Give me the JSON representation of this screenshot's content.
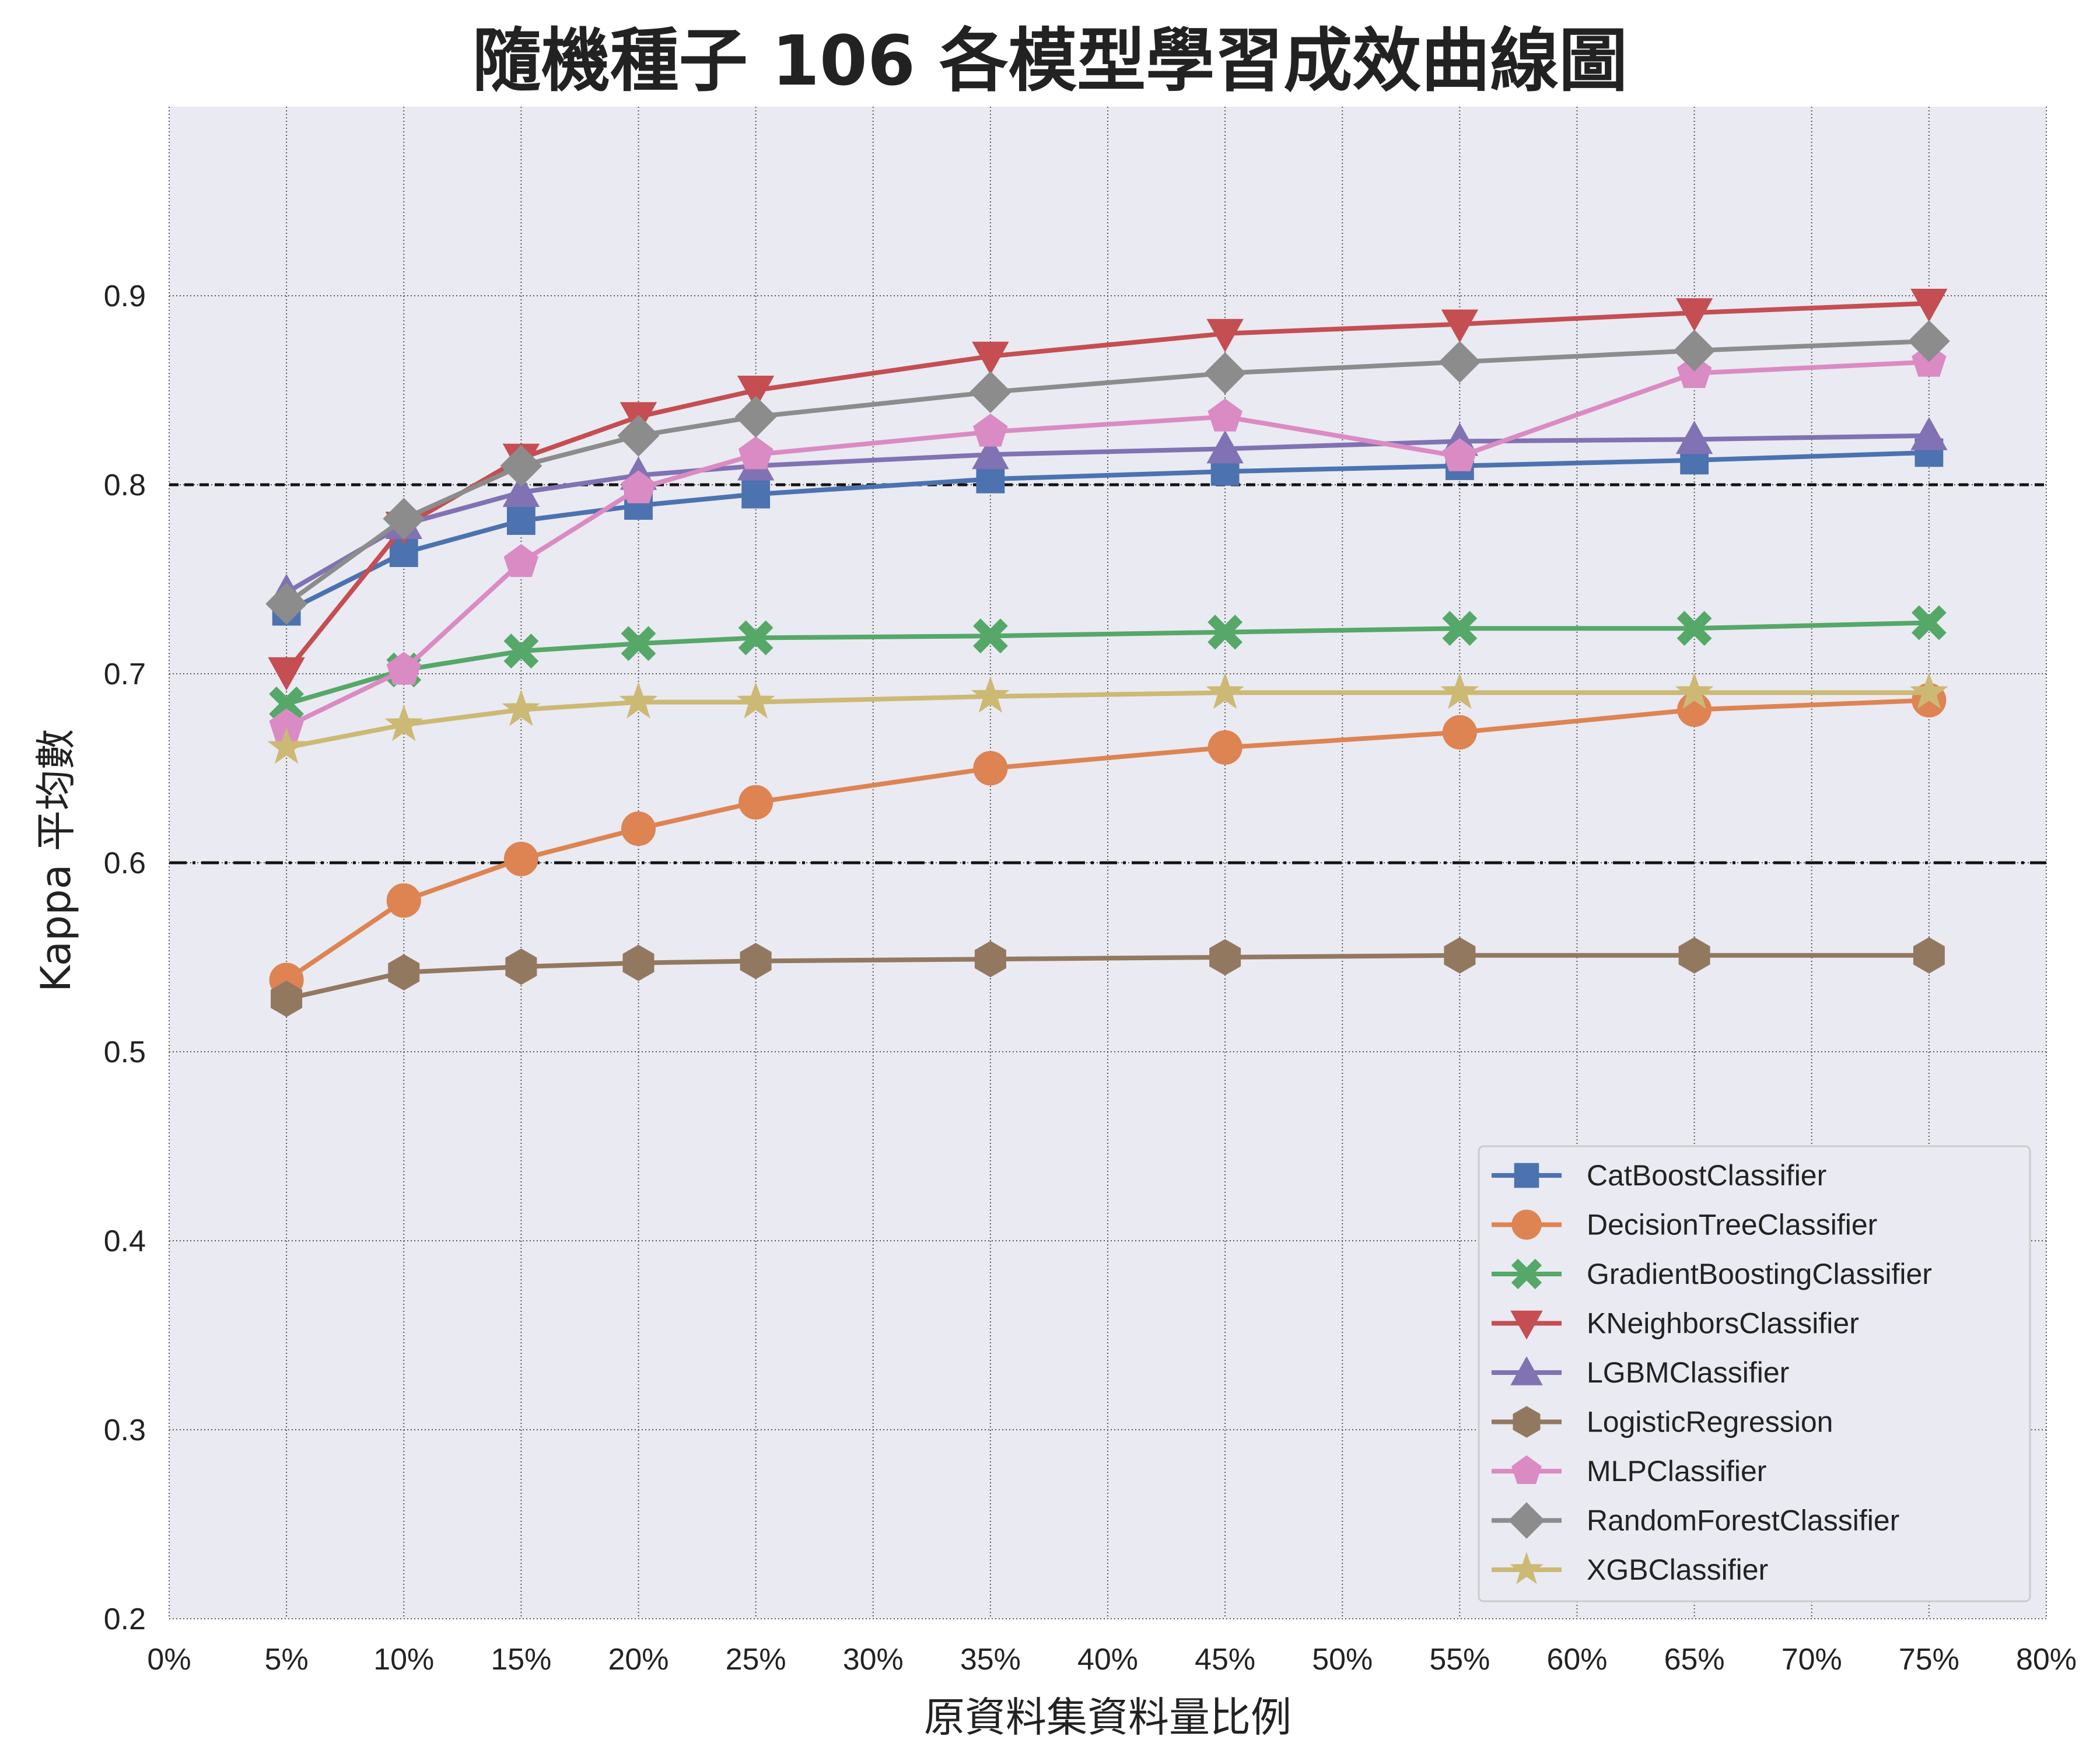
{
  "chart_data": {
    "type": "line",
    "title": "隨機種子 106 各模型學習成效曲線圖",
    "xlabel": "原資料集資料量比例",
    "ylabel": "Kappa 平均數",
    "x": [
      0.05,
      0.1,
      0.15,
      0.2,
      0.25,
      0.35,
      0.45,
      0.55,
      0.65,
      0.75
    ],
    "xlim": [
      0,
      0.8
    ],
    "ylim": [
      0.2,
      1.0
    ],
    "x_ticks": [
      "0%",
      "5%",
      "10%",
      "15%",
      "20%",
      "25%",
      "30%",
      "35%",
      "40%",
      "45%",
      "50%",
      "55%",
      "60%",
      "65%",
      "70%",
      "75%",
      "80%"
    ],
    "y_ticks": [
      "0.2",
      "0.3",
      "0.4",
      "0.5",
      "0.6",
      "0.7",
      "0.8",
      "0.9"
    ],
    "grid": true,
    "reference_lines": [
      {
        "y": 0.8,
        "style": "dashed",
        "color": "#111111"
      },
      {
        "y": 0.6,
        "style": "dashdot",
        "color": "#111111"
      }
    ],
    "legend_position": "lower-right",
    "series": [
      {
        "name": "CatBoostClassifier",
        "color": "#4c72b0",
        "marker": "square",
        "values": [
          0.733,
          0.764,
          0.781,
          0.789,
          0.795,
          0.803,
          0.807,
          0.81,
          0.813,
          0.817
        ]
      },
      {
        "name": "DecisionTreeClassifier",
        "color": "#dd8452",
        "marker": "circle",
        "values": [
          0.538,
          0.58,
          0.602,
          0.618,
          0.632,
          0.65,
          0.661,
          0.669,
          0.681,
          0.686
        ]
      },
      {
        "name": "GradientBoostingClassifier",
        "color": "#55a868",
        "marker": "x",
        "values": [
          0.684,
          0.702,
          0.712,
          0.716,
          0.719,
          0.72,
          0.722,
          0.724,
          0.724,
          0.727
        ]
      },
      {
        "name": "KNeighborsClassifier",
        "color": "#c44e52",
        "marker": "triangle-down",
        "values": [
          0.701,
          0.778,
          0.814,
          0.836,
          0.85,
          0.868,
          0.88,
          0.885,
          0.891,
          0.896
        ]
      },
      {
        "name": "LGBMClassifier",
        "color": "#8172b3",
        "marker": "triangle-up",
        "values": [
          0.743,
          0.779,
          0.796,
          0.805,
          0.81,
          0.816,
          0.819,
          0.823,
          0.824,
          0.826
        ]
      },
      {
        "name": "LogisticRegression",
        "color": "#937860",
        "marker": "hexagon",
        "values": [
          0.528,
          0.542,
          0.545,
          0.547,
          0.548,
          0.549,
          0.55,
          0.551,
          0.551,
          0.551
        ]
      },
      {
        "name": "MLPClassifier",
        "color": "#da8bc3",
        "marker": "pentagon",
        "values": [
          0.672,
          0.702,
          0.759,
          0.798,
          0.816,
          0.828,
          0.836,
          0.815,
          0.859,
          0.865
        ]
      },
      {
        "name": "RandomForestClassifier",
        "color": "#8c8c8c",
        "marker": "diamond",
        "values": [
          0.737,
          0.782,
          0.81,
          0.826,
          0.836,
          0.849,
          0.859,
          0.865,
          0.871,
          0.876
        ]
      },
      {
        "name": "XGBClassifier",
        "color": "#ccb974",
        "marker": "star",
        "values": [
          0.661,
          0.673,
          0.681,
          0.685,
          0.685,
          0.688,
          0.69,
          0.69,
          0.69,
          0.69
        ]
      }
    ]
  }
}
